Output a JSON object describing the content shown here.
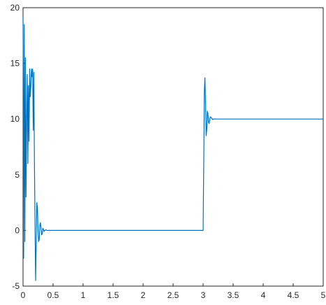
{
  "chart_data": {
    "type": "line",
    "title": "",
    "xlabel": "",
    "ylabel": "",
    "xlim": [
      0,
      5
    ],
    "ylim": [
      -5,
      20
    ],
    "grid": false,
    "box": true,
    "x_ticks": [
      "0",
      "0.5",
      "1",
      "1.5",
      "2",
      "2.5",
      "3",
      "3.5",
      "4",
      "4.5",
      "5"
    ],
    "y_ticks": [
      "-5",
      "0",
      "5",
      "10",
      "15",
      "20"
    ],
    "series": [
      {
        "color": "#0072BD",
        "x": [
          0,
          0.01,
          0.02,
          0.03,
          0.04,
          0.05,
          0.06,
          0.07,
          0.08,
          0.09,
          0.1,
          0.11,
          0.12,
          0.13,
          0.14,
          0.15,
          0.16,
          0.17,
          0.18,
          0.19,
          0.2,
          0.21,
          0.22,
          0.23,
          0.24,
          0.25,
          0.26,
          0.27,
          0.28,
          0.29,
          0.3,
          0.31,
          0.32,
          0.33,
          0.34,
          0.35,
          0.36,
          0.38,
          0.4,
          0.45,
          0.5,
          1.0,
          1.5,
          2.0,
          2.5,
          2.99,
          3.0,
          3.01,
          3.02,
          3.03,
          3.04,
          3.05,
          3.06,
          3.07,
          3.08,
          3.09,
          3.1,
          3.12,
          3.14,
          3.16,
          3.18,
          3.2,
          3.25,
          3.3,
          3.4,
          3.5,
          4.0,
          4.5,
          5.0
        ],
        "y": [
          19.2,
          -2.5,
          18.5,
          -1.0,
          15.5,
          3.0,
          10.0,
          14.0,
          6.0,
          13.0,
          8.0,
          14.5,
          12.0,
          13.0,
          14.5,
          13.8,
          14.5,
          9.0,
          14.2,
          6.0,
          0.5,
          -4.5,
          -1.0,
          2.5,
          2.0,
          0.0,
          -1.0,
          -0.8,
          0.5,
          0.7,
          0.2,
          -0.4,
          -0.3,
          0.2,
          0.1,
          -0.1,
          0.0,
          0.05,
          0.0,
          0.0,
          0.0,
          0.0,
          0.0,
          0.0,
          0.0,
          0.0,
          0.0,
          6.0,
          12.5,
          13.7,
          11.5,
          8.5,
          9.0,
          10.7,
          10.5,
          9.7,
          9.6,
          10.2,
          10.1,
          9.95,
          10.02,
          10.0,
          10.0,
          10.0,
          10.0,
          10.0,
          10.0,
          10.0,
          10.0
        ]
      }
    ]
  }
}
